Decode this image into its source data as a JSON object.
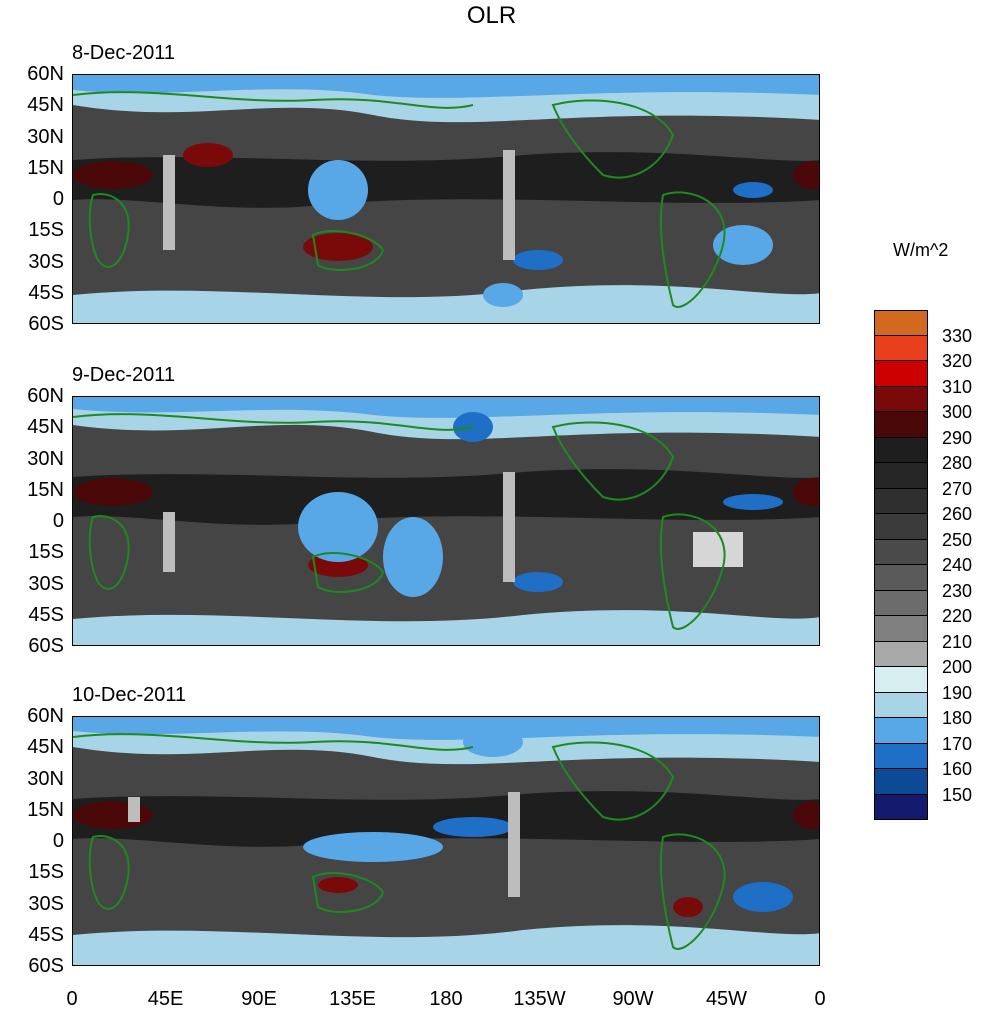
{
  "title": "OLR",
  "panels": [
    {
      "date": "8-Dec-2011"
    },
    {
      "date": "9-Dec-2011"
    },
    {
      "date": "10-Dec-2011"
    }
  ],
  "lat_labels": [
    "60N",
    "45N",
    "30N",
    "15N",
    "0",
    "15S",
    "30S",
    "45S",
    "60S"
  ],
  "lon_labels": [
    "0",
    "45E",
    "90E",
    "135E",
    "180",
    "135W",
    "90W",
    "45W",
    "0"
  ],
  "colorbar": {
    "units": "W/m^2",
    "levels": [
      "330",
      "320",
      "310",
      "300",
      "290",
      "280",
      "270",
      "260",
      "250",
      "240",
      "230",
      "220",
      "210",
      "200",
      "190",
      "180",
      "170",
      "160",
      "150"
    ],
    "colors": [
      "#d2691e",
      "#e8401c",
      "#cc0000",
      "#7a0a0a",
      "#4a0808",
      "#1e1e1e",
      "#262626",
      "#2f2f2f",
      "#3b3b3b",
      "#4a4a4a",
      "#5a5a5a",
      "#6c6c6c",
      "#808080",
      "#a8a8a8",
      "#d6eef0",
      "#a8d4e8",
      "#58a8e8",
      "#1f6fc6",
      "#0d4a96",
      "#141a6e"
    ]
  }
}
